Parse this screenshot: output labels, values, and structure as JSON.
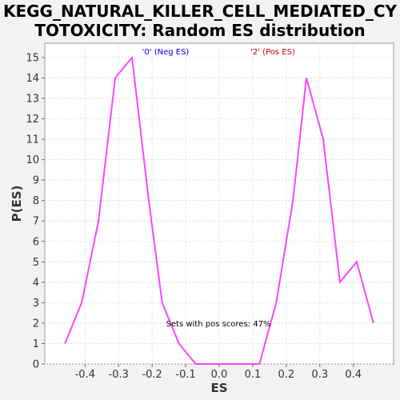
{
  "chart_data": {
    "type": "line",
    "title": "KEGG_NATURAL_KILLER_CELL_MEDIATED_CY\nTOTOXICITY: Random ES distribution",
    "xlabel": "ES",
    "ylabel": "P(ES)",
    "xlim": [
      -0.52,
      0.52
    ],
    "ylim": [
      0,
      15.7
    ],
    "x_ticks": [
      -0.4,
      -0.3,
      -0.2,
      -0.1,
      0.0,
      0.1,
      0.2,
      0.3,
      0.4
    ],
    "x_tick_labels": [
      "-0.4",
      "-0.3",
      "-0.2",
      "-0.1",
      "0.0",
      "0.1",
      "0.2",
      "0.3",
      "0.4"
    ],
    "y_ticks": [
      0,
      1,
      2,
      3,
      4,
      5,
      6,
      7,
      8,
      9,
      10,
      11,
      12,
      13,
      14,
      15
    ],
    "grid": true,
    "series": [
      {
        "color": "#ff44ff",
        "x": [
          -0.46,
          -0.41,
          -0.36,
          -0.31,
          -0.26,
          -0.21,
          -0.17,
          -0.12,
          -0.07,
          -0.02,
          0.02,
          0.07,
          0.12,
          0.17,
          0.22,
          0.26,
          0.31,
          0.36,
          0.41,
          0.46
        ],
        "y": [
          1,
          3,
          7,
          14,
          15,
          8,
          3,
          1,
          0,
          0,
          0,
          0,
          0,
          3,
          8,
          14,
          11,
          4,
          5,
          2
        ]
      }
    ],
    "annotations": [
      {
        "text": "'0' (Neg ES)",
        "color": "#0000cc"
      },
      {
        "text": "'2' (Pos ES)",
        "color": "#cc0000"
      },
      {
        "text": "Sets with pos scores: 47%",
        "color": "#000000"
      }
    ]
  }
}
